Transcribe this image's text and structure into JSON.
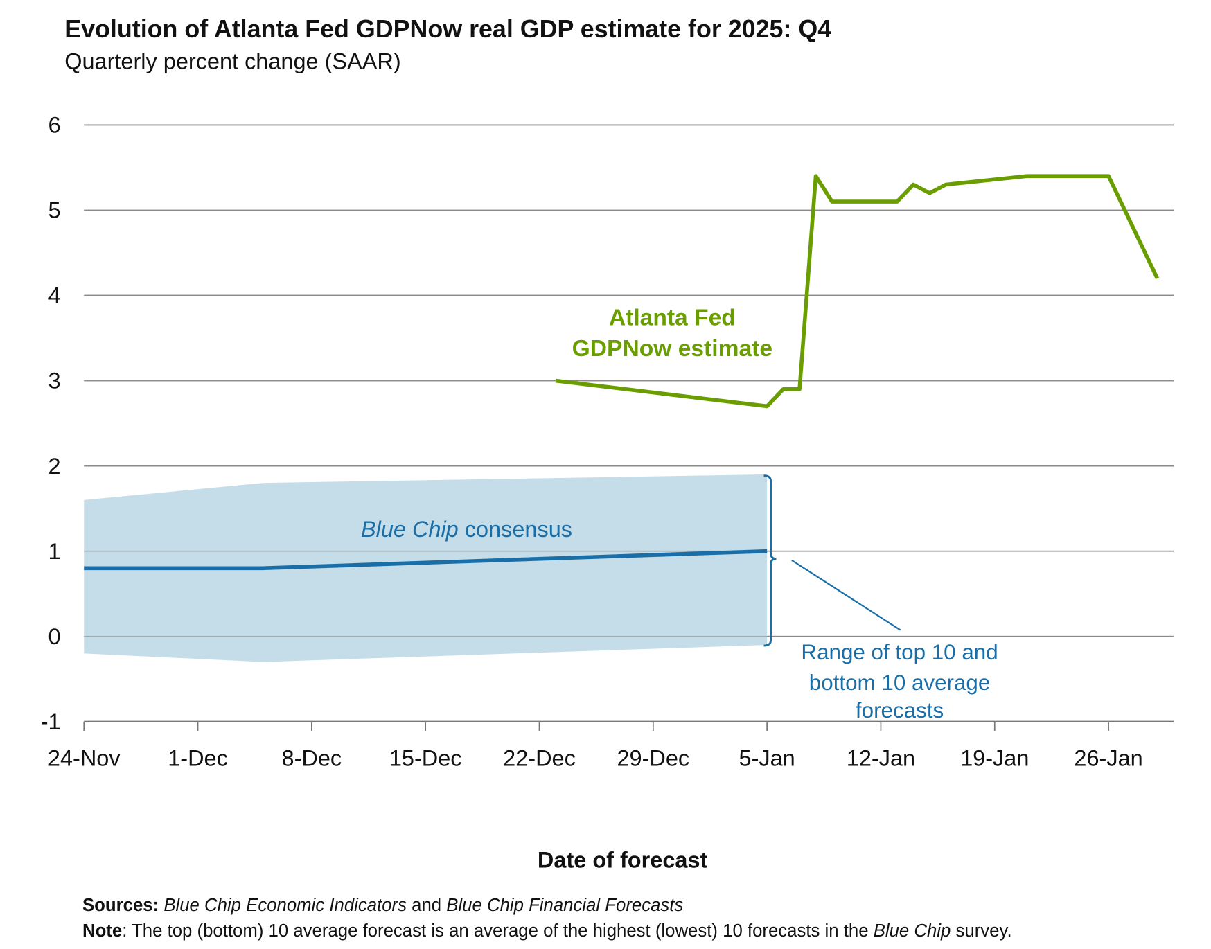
{
  "chart_data": {
    "type": "line",
    "title": "Evolution of Atlanta Fed GDPNow real GDP estimate for 2025: Q4",
    "subtitle": "Quarterly percent change (SAAR)",
    "xlabel": "Date of forecast",
    "ylabel": "",
    "ylim": [
      -1,
      6
    ],
    "yticks": [
      "6",
      "5",
      "4",
      "3",
      "2",
      "1",
      "0",
      "-1"
    ],
    "ytick_values": [
      6,
      5,
      4,
      3,
      2,
      1,
      0,
      -1
    ],
    "x_unit": "days since 24-Nov",
    "xlim": [
      0,
      67
    ],
    "xticks": [
      "24-Nov",
      "1-Dec",
      "8-Dec",
      "15-Dec",
      "22-Dec",
      "29-Dec",
      "5-Jan",
      "12-Jan",
      "19-Jan",
      "26-Jan"
    ],
    "xtick_values": [
      0,
      7,
      14,
      21,
      28,
      35,
      42,
      49,
      56,
      63
    ],
    "grid": true,
    "series": [
      {
        "name": "Atlanta Fed GDPNow estimate",
        "color": "#6a9e00",
        "x": [
          29,
          42,
          43,
          44,
          45,
          46,
          50,
          51,
          52,
          53,
          58,
          63,
          66
        ],
        "values": [
          3.0,
          2.7,
          2.9,
          2.9,
          5.4,
          5.1,
          5.1,
          5.3,
          5.2,
          5.3,
          5.4,
          5.4,
          4.2
        ]
      },
      {
        "name": "Blue Chip consensus",
        "color": "#1a6ea8",
        "x": [
          0,
          11,
          42
        ],
        "values": [
          0.8,
          0.8,
          1.0
        ]
      },
      {
        "name": "Range of top 10 and bottom 10 average forecasts",
        "type": "band",
        "color": "#c5dde9",
        "x": [
          0,
          11,
          42
        ],
        "upper": [
          1.6,
          1.8,
          1.9
        ],
        "lower": [
          -0.2,
          -0.3,
          -0.1
        ]
      }
    ],
    "annotations": {
      "gdpnow_line1": "Atlanta Fed",
      "gdpnow_line2": "GDPNow estimate",
      "bluechip_italic": "Blue Chip",
      "bluechip_rest": " consensus",
      "range_line1": "Range of top 10 and",
      "range_line2": "bottom 10 average",
      "range_line3": "forecasts"
    }
  },
  "footer": {
    "sources_label": "Sources:",
    "sources_italic1": "Blue Chip Economic Indicators",
    "sources_and": " and ",
    "sources_italic2": "Blue Chip Financial Forecasts",
    "note_label": "Note",
    "note_text": ": The top (bottom) 10 average forecast is an average of the highest (lowest) 10 forecasts in the ",
    "note_italic": "Blue Chip",
    "note_end": " survey."
  }
}
